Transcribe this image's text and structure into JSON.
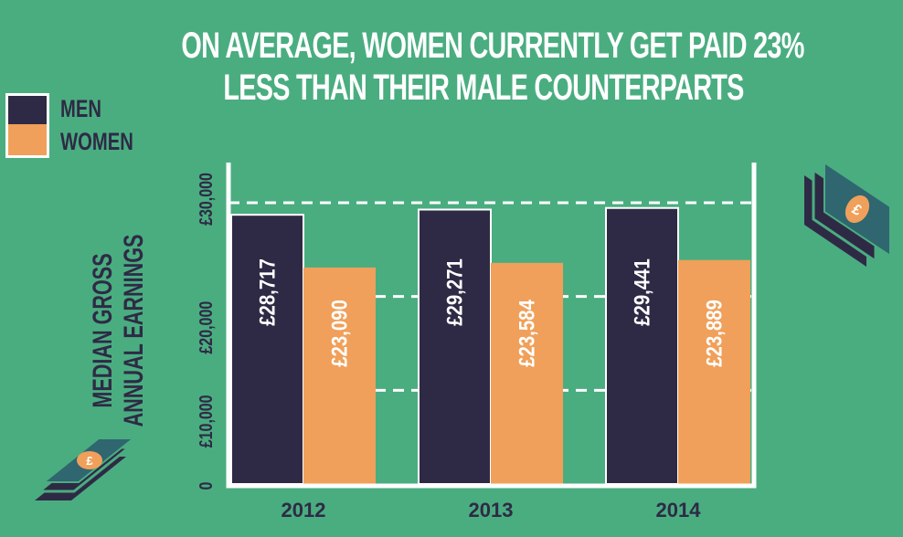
{
  "title_line1": "ON AVERAGE, WOMEN CURRENTLY GET PAID 23%",
  "title_line2": "LESS THAN THEIR MALE COUNTERPARTS",
  "icons": [
    "money-stack-icon",
    "money-stack-icon"
  ],
  "colors": {
    "background": "#4aad80",
    "men": "#2e2a45",
    "women": "#f0a05a",
    "money": "#2f6670"
  },
  "chart_data": {
    "type": "bar",
    "title": "ON AVERAGE, WOMEN CURRENTLY GET PAID 23% LESS THAN THEIR MALE COUNTERPARTS",
    "ylabel_line1": "MEDIAN GROSS",
    "ylabel_line2": "ANNUAL EARNINGS",
    "categories": [
      "2012",
      "2013",
      "2014"
    ],
    "series": [
      {
        "name": "MEN",
        "values": [
          28717,
          29271,
          29441
        ],
        "labels": [
          "£28,717",
          "£29,271",
          "£29,441"
        ],
        "color": "#2e2a45"
      },
      {
        "name": "WOMEN",
        "values": [
          23090,
          23584,
          23889
        ],
        "labels": [
          "£23,090",
          "£23,584",
          "£23,889"
        ],
        "color": "#f0a05a"
      }
    ],
    "yticks": [
      0,
      10000,
      20000,
      30000
    ],
    "ytick_labels": [
      "0",
      "£10,000",
      "£20,000",
      "£30,000"
    ],
    "ylim": [
      0,
      30000
    ],
    "grid": "dashed at 10,000 / 20,000 / 30,000",
    "legend_position": "top-left"
  }
}
